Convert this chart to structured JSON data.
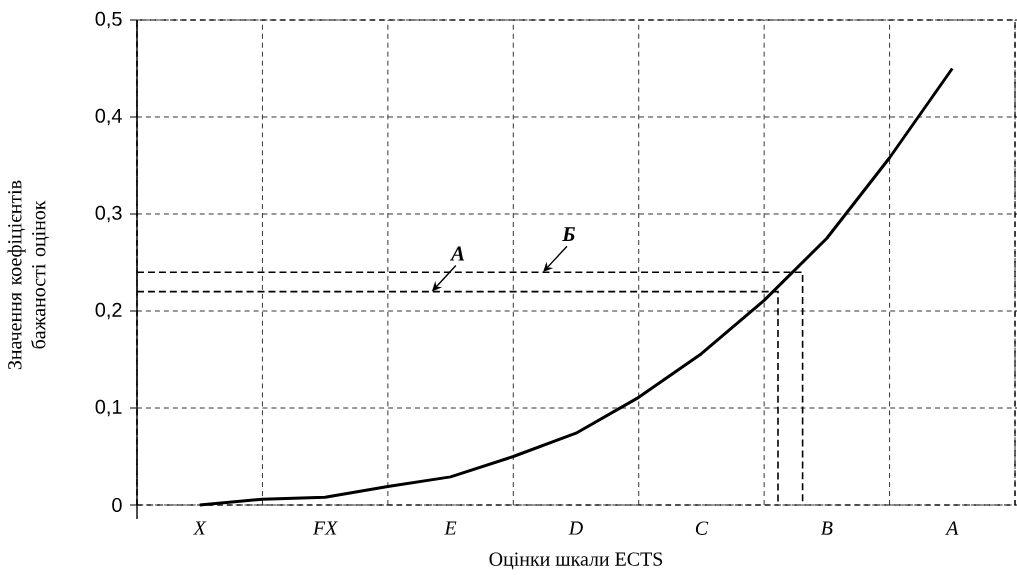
{
  "chart_data": {
    "type": "line",
    "xlabel": "Оцінки шкали ECTS",
    "ylabel": "Значення коефіцієнтів бажаності оцінок",
    "categories": [
      null,
      "X",
      null,
      "FX",
      null,
      "E",
      null,
      "D",
      null,
      "C",
      null,
      "B",
      null,
      "A",
      null
    ],
    "ylim": [
      0,
      0.5
    ],
    "yticks": [
      {
        "value": 0,
        "label": "0"
      },
      {
        "value": 0.1,
        "label": "0,1"
      },
      {
        "value": 0.2,
        "label": "0,2"
      },
      {
        "value": 0.3,
        "label": "0,3"
      },
      {
        "value": 0.4,
        "label": "0,4"
      },
      {
        "value": 0.5,
        "label": "0,5"
      }
    ],
    "grid": true,
    "series": [
      {
        "color": "#000000",
        "values": [
          null,
          0,
          0.006,
          0.008,
          0.019,
          0.029,
          0.05,
          0.074,
          0.111,
          0.156,
          0.211,
          0.275,
          0.358,
          0.45,
          null
        ]
      }
    ],
    "ref_lines": [
      {
        "axis": "y",
        "value": 0.22,
        "label": "А"
      },
      {
        "axis": "y",
        "value": 0.24,
        "label": "Б"
      }
    ]
  }
}
